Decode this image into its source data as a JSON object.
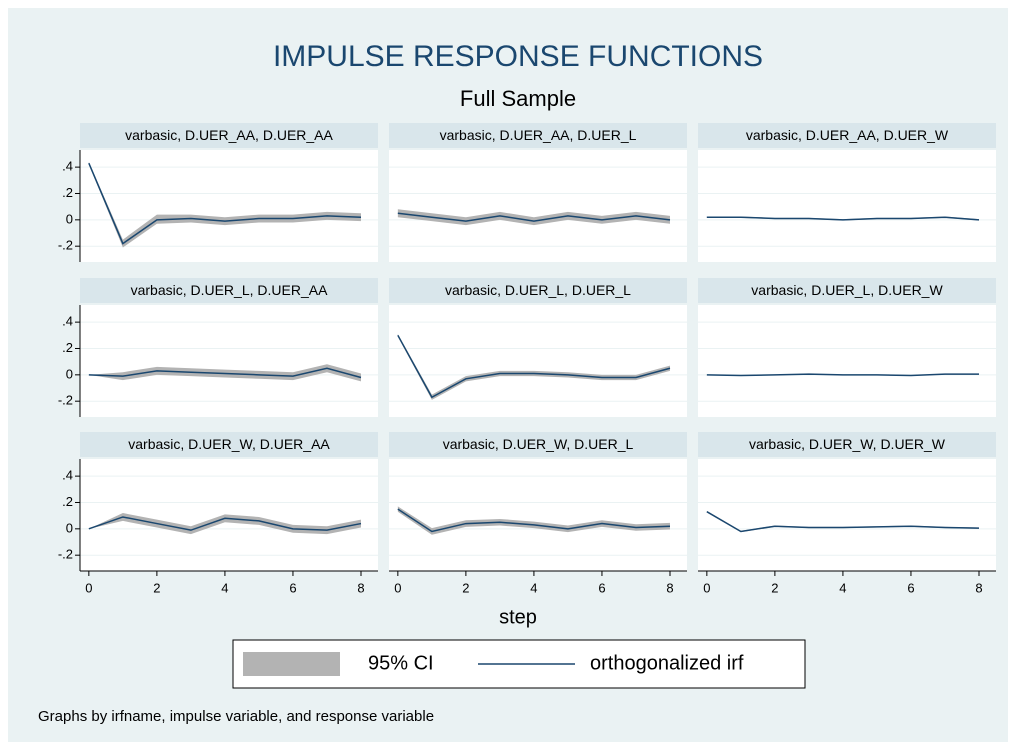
{
  "title": "IMPULSE RESPONSE FUNCTIONS",
  "subtitle": "Full Sample",
  "xlabel": "step",
  "note": "Graphs by irfname, impulse variable, and response variable",
  "axes": {
    "xlim": [
      -0.26,
      8.5
    ],
    "ylim": [
      -0.32,
      0.53
    ],
    "xticks": [
      0,
      2,
      4,
      6,
      8
    ],
    "yticks": [
      {
        "value": -0.2,
        "label": "-.2"
      },
      0,
      {
        "value": 0.2,
        "label": ".2"
      },
      {
        "value": 0.4,
        "label": ".4"
      }
    ],
    "grid": true
  },
  "chart_data": [
    {
      "type": "line",
      "title": "varbasic, D.UER_AA, D.UER_AA",
      "x": [
        0,
        1,
        2,
        3,
        4,
        5,
        6,
        7,
        8
      ],
      "series": [
        {
          "name": "95% CI",
          "color": "#b3b3b3",
          "lower": [
            0.42,
            -0.21,
            -0.03,
            -0.02,
            -0.04,
            -0.02,
            -0.02,
            0.0,
            -0.01
          ],
          "upper": [
            0.44,
            -0.15,
            0.04,
            0.04,
            0.02,
            0.04,
            0.04,
            0.06,
            0.05
          ]
        },
        {
          "name": "orthogonalized irf",
          "color": "#1a476f",
          "values": [
            0.43,
            -0.18,
            0.0,
            0.01,
            -0.01,
            0.01,
            0.01,
            0.03,
            0.02
          ]
        }
      ]
    },
    {
      "type": "line",
      "title": "varbasic, D.UER_AA, D.UER_L",
      "x": [
        0,
        1,
        2,
        3,
        4,
        5,
        6,
        7,
        8
      ],
      "series": [
        {
          "name": "95% CI",
          "color": "#b3b3b3",
          "lower": [
            0.02,
            -0.01,
            -0.04,
            0.0,
            -0.04,
            0.0,
            -0.03,
            0.0,
            -0.03
          ],
          "upper": [
            0.08,
            0.05,
            0.02,
            0.06,
            0.02,
            0.06,
            0.03,
            0.06,
            0.03
          ]
        },
        {
          "name": "orthogonalized irf",
          "color": "#1a476f",
          "values": [
            0.05,
            0.02,
            -0.01,
            0.03,
            -0.01,
            0.03,
            0.0,
            0.03,
            0.0
          ]
        }
      ]
    },
    {
      "type": "line",
      "title": "varbasic, D.UER_AA, D.UER_W",
      "x": [
        0,
        1,
        2,
        3,
        4,
        5,
        6,
        7,
        8
      ],
      "series": [
        {
          "name": "95% CI",
          "color": "#b3b3b3",
          "lower": [
            0.015,
            0.015,
            0.005,
            0.005,
            -0.005,
            0.005,
            0.005,
            0.015,
            -0.005
          ],
          "upper": [
            0.025,
            0.025,
            0.015,
            0.015,
            0.005,
            0.015,
            0.015,
            0.025,
            0.005
          ]
        },
        {
          "name": "orthogonalized irf",
          "color": "#1a476f",
          "values": [
            0.02,
            0.02,
            0.01,
            0.01,
            0.0,
            0.01,
            0.01,
            0.02,
            0.0
          ]
        }
      ]
    },
    {
      "type": "line",
      "title": "varbasic, D.UER_L, D.UER_AA",
      "x": [
        0,
        1,
        2,
        3,
        4,
        5,
        6,
        7,
        8
      ],
      "series": [
        {
          "name": "95% CI",
          "color": "#b3b3b3",
          "lower": [
            0,
            -0.04,
            0.0,
            -0.01,
            -0.02,
            -0.03,
            -0.04,
            0.02,
            -0.05
          ],
          "upper": [
            0,
            0.02,
            0.06,
            0.05,
            0.04,
            0.03,
            0.02,
            0.08,
            0.01
          ]
        },
        {
          "name": "orthogonalized irf",
          "color": "#1a476f",
          "values": [
            0,
            -0.01,
            0.03,
            0.02,
            0.01,
            0,
            -0.01,
            0.05,
            -0.02
          ]
        }
      ]
    },
    {
      "type": "line",
      "title": "varbasic, D.UER_L, D.UER_L",
      "x": [
        0,
        1,
        2,
        3,
        4,
        5,
        6,
        7,
        8
      ],
      "series": [
        {
          "name": "95% CI",
          "color": "#b3b3b3",
          "lower": [
            0.29,
            -0.19,
            -0.05,
            -0.01,
            -0.01,
            -0.02,
            -0.04,
            -0.04,
            0.03
          ],
          "upper": [
            0.31,
            -0.15,
            -0.01,
            0.03,
            0.03,
            0.02,
            0.0,
            0.0,
            0.07
          ]
        },
        {
          "name": "orthogonalized irf",
          "color": "#1a476f",
          "values": [
            0.3,
            -0.17,
            -0.03,
            0.01,
            0.01,
            0.0,
            -0.02,
            -0.02,
            0.05
          ]
        }
      ]
    },
    {
      "type": "line",
      "title": "varbasic, D.UER_L, D.UER_W",
      "x": [
        0,
        1,
        2,
        3,
        4,
        5,
        6,
        7,
        8
      ],
      "series": [
        {
          "name": "95% CI",
          "color": "#b3b3b3",
          "lower": [
            0,
            -0.008,
            -0.003,
            0.002,
            -0.003,
            -0.003,
            -0.008,
            0.002,
            0.002
          ],
          "upper": [
            0,
            -0.002,
            0.003,
            0.008,
            0.003,
            0.003,
            -0.002,
            0.008,
            0.008
          ]
        },
        {
          "name": "orthogonalized irf",
          "color": "#1a476f",
          "values": [
            0,
            -0.005,
            0,
            0.005,
            0,
            0,
            -0.005,
            0.005,
            0.005
          ]
        }
      ]
    },
    {
      "type": "line",
      "title": "varbasic, D.UER_W, D.UER_AA",
      "x": [
        0,
        1,
        2,
        3,
        4,
        5,
        6,
        7,
        8
      ],
      "series": [
        {
          "name": "95% CI",
          "color": "#b3b3b3",
          "lower": [
            0,
            0.06,
            0.01,
            -0.04,
            0.05,
            0.03,
            -0.03,
            -0.04,
            0.01
          ],
          "upper": [
            0,
            0.12,
            0.07,
            0.02,
            0.11,
            0.09,
            0.03,
            0.02,
            0.07
          ]
        },
        {
          "name": "orthogonalized irf",
          "color": "#1a476f",
          "values": [
            0,
            0.09,
            0.04,
            -0.01,
            0.08,
            0.06,
            0.0,
            -0.01,
            0.04
          ]
        }
      ]
    },
    {
      "type": "line",
      "title": "varbasic, D.UER_W, D.UER_L",
      "x": [
        0,
        1,
        2,
        3,
        4,
        5,
        6,
        7,
        8
      ],
      "series": [
        {
          "name": "95% CI",
          "color": "#b3b3b3",
          "lower": [
            0.13,
            -0.045,
            0.015,
            0.025,
            0.005,
            -0.025,
            0.015,
            -0.015,
            -0.005
          ],
          "upper": [
            0.17,
            0.005,
            0.065,
            0.075,
            0.055,
            0.025,
            0.065,
            0.035,
            0.045
          ]
        },
        {
          "name": "orthogonalized irf",
          "color": "#1a476f",
          "values": [
            0.15,
            -0.02,
            0.04,
            0.05,
            0.03,
            0,
            0.04,
            0.01,
            0.02
          ]
        }
      ]
    },
    {
      "type": "line",
      "title": "varbasic, D.UER_W, D.UER_W",
      "x": [
        0,
        1,
        2,
        3,
        4,
        5,
        6,
        7,
        8
      ],
      "series": [
        {
          "name": "95% CI",
          "color": "#b3b3b3",
          "lower": [
            0.125,
            -0.025,
            0.015,
            0.005,
            0.005,
            0.01,
            0.015,
            0.005,
            0
          ],
          "upper": [
            0.135,
            -0.015,
            0.025,
            0.015,
            0.015,
            0.02,
            0.025,
            0.015,
            0.01
          ]
        },
        {
          "name": "orthogonalized irf",
          "color": "#1a476f",
          "values": [
            0.13,
            -0.02,
            0.02,
            0.01,
            0.01,
            0.015,
            0.02,
            0.01,
            0.005
          ]
        }
      ]
    }
  ]
}
